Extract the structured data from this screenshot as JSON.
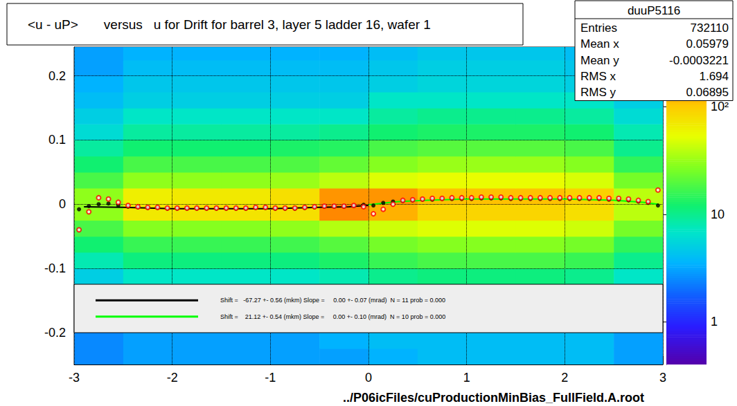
{
  "chart_data": {
    "type": "heatmap",
    "title": "<u - uP>       versus   u for Drift for barrel 3, layer 5 ladder 16, wafer 1",
    "x_label": "../P06icFiles/cuProductionMinBias_FullField.A.root",
    "xlim": [
      -3,
      3
    ],
    "xticks": [
      -3,
      -2,
      -1,
      0,
      1,
      2,
      3
    ],
    "ylim": [
      -0.25,
      0.245
    ],
    "yticks": [
      -0.2,
      -0.1,
      0,
      0.1,
      0.2
    ],
    "grid": true,
    "x_bins": [
      -3,
      -2.5,
      -2,
      -1.5,
      -1,
      -0.5,
      0,
      0.5,
      1,
      1.5,
      2,
      2.5,
      3
    ],
    "y_bins": [
      -0.25,
      -0.225,
      -0.2,
      -0.175,
      -0.15,
      -0.125,
      -0.1,
      -0.075,
      -0.05,
      -0.025,
      0,
      0.025,
      0.05,
      0.075,
      0.1,
      0.125,
      0.15,
      0.175,
      0.2,
      0.225,
      0.25
    ],
    "cells": [
      [
        2.5,
        3,
        3,
        3,
        3,
        3,
        3.5,
        4,
        4,
        4,
        4,
        3
      ],
      [
        2.5,
        3,
        3,
        3,
        3,
        3.5,
        4,
        4,
        4,
        4,
        4,
        3
      ],
      [
        null,
        null,
        null,
        null,
        null,
        null,
        null,
        null,
        null,
        null,
        null,
        null
      ],
      [
        null,
        null,
        null,
        null,
        null,
        null,
        null,
        null,
        null,
        null,
        null,
        null
      ],
      [
        null,
        null,
        null,
        null,
        null,
        null,
        null,
        null,
        null,
        null,
        null,
        null
      ],
      [
        5,
        7,
        7,
        7,
        7,
        8,
        10,
        11,
        11,
        11,
        10,
        7
      ],
      [
        8,
        11,
        11,
        11,
        11,
        13,
        16,
        18,
        18,
        18,
        16,
        10
      ],
      [
        12,
        16,
        16,
        16,
        17,
        20,
        25,
        28,
        28,
        28,
        25,
        15
      ],
      [
        18,
        28,
        28,
        28,
        30,
        38,
        45,
        50,
        50,
        50,
        45,
        25
      ],
      [
        30,
        70,
        75,
        75,
        80,
        150,
        120,
        90,
        90,
        90,
        80,
        40
      ],
      [
        30,
        65,
        70,
        70,
        80,
        140,
        140,
        110,
        110,
        110,
        95,
        40
      ],
      [
        18,
        30,
        30,
        30,
        32,
        40,
        50,
        55,
        55,
        55,
        48,
        25
      ],
      [
        12,
        18,
        18,
        18,
        19,
        22,
        28,
        32,
        32,
        32,
        28,
        15
      ],
      [
        9,
        12,
        12,
        12,
        13,
        14,
        18,
        20,
        20,
        20,
        18,
        10
      ],
      [
        6,
        9,
        9,
        9,
        9,
        10,
        12,
        13,
        13,
        13,
        12,
        8
      ],
      [
        5,
        7,
        7,
        7,
        7,
        7,
        9,
        10,
        10,
        10,
        9,
        6
      ],
      [
        4,
        5,
        5,
        5,
        5,
        5,
        7,
        7,
        7,
        7,
        7,
        5
      ],
      [
        3.5,
        4.5,
        4.5,
        4.5,
        4.5,
        4.5,
        5,
        5.5,
        5.5,
        5.5,
        5,
        4
      ],
      [
        3,
        4,
        4,
        4,
        4,
        4,
        4.5,
        5,
        5,
        5,
        4.5,
        3.5
      ],
      [
        3,
        3.5,
        3.5,
        3.5,
        3.5,
        3.5,
        4,
        4.5,
        4.5,
        4.5,
        4,
        3
      ]
    ],
    "colorbar": {
      "range": [
        0.4,
        360
      ],
      "ticks": [
        1,
        10,
        {
          "value": 100,
          "label": "10²"
        }
      ],
      "log": true
    },
    "series": [
      {
        "type": "scatter",
        "color": "#000000",
        "marker": "circle",
        "x": [
          -2.95,
          -2.85,
          -2.75,
          -2.65,
          -2.55,
          -2.45,
          -2.35,
          -2.25,
          -2.15,
          -2.05,
          -1.95,
          -1.85,
          -1.75,
          -1.65,
          -1.55,
          -1.45,
          -1.35,
          -1.25,
          -1.15,
          -1.05,
          -0.95,
          -0.85,
          -0.75,
          -0.65,
          -0.55,
          -0.45,
          -0.35,
          -0.25,
          -0.15,
          -0.05,
          0.05,
          0.15,
          0.25,
          0.35,
          0.45,
          0.55,
          0.65,
          0.75,
          0.85,
          0.95,
          1.05,
          1.15,
          1.25,
          1.35,
          1.45,
          1.55,
          1.65,
          1.75,
          1.85,
          1.95,
          2.05,
          2.15,
          2.25,
          2.35,
          2.45,
          2.55,
          2.65,
          2.75,
          2.85,
          2.95
        ],
        "values": [
          -0.008,
          -0.003,
          0,
          0.001,
          -0.002,
          -0.004,
          -0.005,
          -0.006,
          -0.006,
          -0.007,
          -0.007,
          -0.007,
          -0.007,
          -0.007,
          -0.007,
          -0.007,
          -0.007,
          -0.007,
          -0.006,
          -0.006,
          -0.007,
          -0.007,
          -0.007,
          -0.006,
          -0.005,
          -0.004,
          -0.004,
          -0.004,
          -0.003,
          -0.001,
          -0.002,
          0.002,
          0.004,
          0.005,
          0.006,
          0.007,
          0.007,
          0.008,
          0.008,
          0.008,
          0.008,
          0.009,
          0.009,
          0.009,
          0.008,
          0.008,
          0.008,
          0.008,
          0.008,
          0.008,
          0.008,
          0.008,
          0.008,
          0.008,
          0.007,
          0.007,
          0.006,
          0.004,
          0.002,
          -0.002
        ]
      },
      {
        "type": "scatter",
        "color": "#ff0000",
        "marker": "open_circle",
        "x": [
          -2.95,
          -2.85,
          -2.75,
          -2.65,
          -2.55,
          -2.45,
          -2.35,
          -2.25,
          -2.15,
          -2.05,
          -1.95,
          -1.85,
          -1.75,
          -1.65,
          -1.55,
          -1.45,
          -1.35,
          -1.25,
          -1.15,
          -1.05,
          -0.95,
          -0.85,
          -0.75,
          -0.65,
          -0.55,
          -0.45,
          -0.35,
          -0.25,
          -0.15,
          -0.05,
          0.05,
          0.15,
          0.25,
          0.35,
          0.45,
          0.55,
          0.65,
          0.75,
          0.85,
          0.95,
          1.05,
          1.15,
          1.25,
          1.35,
          1.45,
          1.55,
          1.65,
          1.75,
          1.85,
          1.95,
          2.05,
          2.15,
          2.25,
          2.35,
          2.45,
          2.55,
          2.65,
          2.75,
          2.85,
          2.95
        ],
        "values": [
          -0.04,
          -0.012,
          0.01,
          0.008,
          0.003,
          -0.002,
          -0.004,
          -0.005,
          -0.005,
          -0.006,
          -0.006,
          -0.006,
          -0.006,
          -0.006,
          -0.006,
          -0.006,
          -0.006,
          -0.006,
          -0.005,
          -0.005,
          -0.006,
          -0.006,
          -0.006,
          -0.005,
          -0.004,
          -0.003,
          -0.003,
          -0.003,
          -0.002,
          -0.004,
          -0.015,
          -0.008,
          0,
          0.006,
          0.007,
          0.008,
          0.009,
          0.009,
          0.01,
          0.01,
          0.01,
          0.011,
          0.011,
          0.011,
          0.01,
          0.01,
          0.01,
          0.01,
          0.01,
          0.01,
          0.01,
          0.01,
          0.01,
          0.01,
          0.009,
          0.009,
          0.008,
          0.006,
          0.004,
          0.022
        ]
      },
      {
        "type": "line",
        "color": "#000000",
        "line_style": "solid",
        "name": "Shift =   -67.27 +- 0.56 (mkm) Slope =     0.00 +- 0.07 (mrad)  N = 11 prob = 0.000",
        "x": [
          -2.9,
          -2.5,
          -2,
          -1.5,
          -1,
          -0.5,
          -0.2,
          0
        ],
        "values": [
          -0.004,
          -0.005,
          -0.007,
          -0.007,
          -0.007,
          -0.005,
          -0.004,
          -0.002
        ]
      },
      {
        "type": "line",
        "color": "#00ff00",
        "line_style": "solid",
        "name": "Shift =    21.12 +- 0.54 (mkm) Slope =     0.00 +- 0.10 (mrad)  N = 10 prob = 0.000",
        "x": [
          0,
          0.3,
          0.6,
          1,
          1.5,
          2,
          2.5,
          2.8,
          2.95
        ],
        "values": [
          -0.001,
          0.004,
          0.006,
          0.008,
          0.008,
          0.008,
          0.006,
          0.003,
          0
        ]
      }
    ],
    "stats": {
      "title": "duuP5116",
      "rows": [
        {
          "label": "Entries",
          "value": 732110
        },
        {
          "label": "Mean x",
          "value": 0.05979
        },
        {
          "label": "Mean y",
          "value": -0.0003221
        },
        {
          "label": "RMS x",
          "value": 1.694
        },
        {
          "label": "RMS y",
          "value": 0.06895
        }
      ]
    }
  }
}
